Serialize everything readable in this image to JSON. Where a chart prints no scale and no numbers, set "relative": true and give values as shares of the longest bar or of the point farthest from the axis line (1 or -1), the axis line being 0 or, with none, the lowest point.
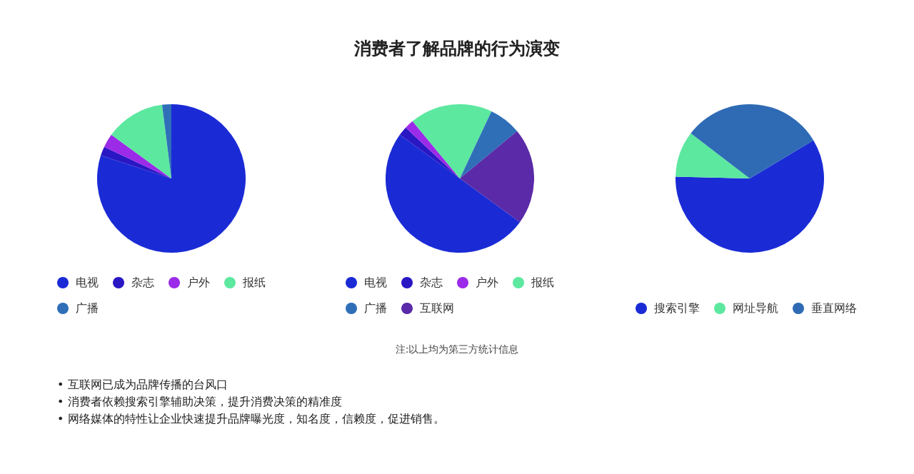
{
  "chart_data": [
    {
      "type": "other",
      "title": "消费者了解品牌的行为演变"
    },
    {
      "type": "pie",
      "legend": "bottom",
      "relative": true,
      "categories": [
        "电视",
        "杂志",
        "户外",
        "报纸",
        "广播"
      ],
      "values": [
        80,
        2,
        3,
        13,
        2
      ],
      "colors": [
        "#1a2bd6",
        "#2a17c4",
        "#9b2be8",
        "#5de8a0",
        "#2f6fb8"
      ]
    },
    {
      "type": "pie",
      "legend": "bottom",
      "relative": true,
      "categories": [
        "电视",
        "杂志",
        "户外",
        "报纸",
        "广播",
        "互联网"
      ],
      "values": [
        50,
        2,
        2,
        18,
        7,
        21
      ],
      "colors": [
        "#1a2bd6",
        "#2a17c4",
        "#9b2be8",
        "#5de8a0",
        "#2f6fb8",
        "#5a2aa8"
      ]
    },
    {
      "type": "pie",
      "legend": "bottom",
      "relative": true,
      "categories": [
        "搜索引擎",
        "网址导航",
        "垂直网络"
      ],
      "values": [
        59,
        10,
        31
      ],
      "colors": [
        "#1a2bd6",
        "#5de8a0",
        "#2f6bb5"
      ]
    },
    {
      "type": "other",
      "annotations": [
        "注:以上均为第三方统计信息",
        "• 互联网已成为品牌传播的台风口",
        "• 消费者依赖搜索引擎辅助决策，提升消费决策的精准度",
        "• 网络媒体的特性让企业快速提升品牌曝光度，知名度，信赖度，促进销售。"
      ]
    }
  ]
}
